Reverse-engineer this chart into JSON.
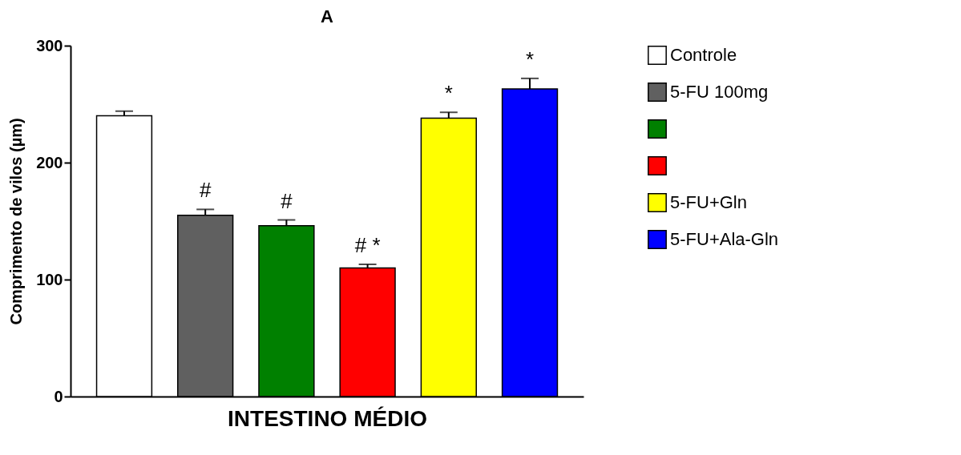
{
  "chart_data": {
    "type": "bar",
    "title": "A",
    "xlabel": "INTESTINO MÉDIO",
    "ylabel": "Comprimento de vilos (µm)",
    "categories": [
      null
    ],
    "ylim": [
      0,
      300
    ],
    "yticks": [
      0,
      100,
      200,
      300
    ],
    "grid": false,
    "legend": "right",
    "series": [
      {
        "name": "Controle",
        "color": "#ffffff",
        "values": [
          240
        ],
        "errors": [
          4
        ],
        "value_labels": [
          null
        ]
      },
      {
        "name": "5-FU 100mg",
        "color": "#606060",
        "values": [
          155
        ],
        "errors": [
          5
        ],
        "value_labels": [
          "#"
        ]
      },
      {
        "name": null,
        "color": "#008000",
        "values": [
          146
        ],
        "errors": [
          5
        ],
        "value_labels": [
          "#"
        ]
      },
      {
        "name": null,
        "color": "#ff0000",
        "values": [
          110
        ],
        "errors": [
          3
        ],
        "value_labels": [
          "#  *"
        ]
      },
      {
        "name": "5-FU+Gln",
        "color": "#ffff00",
        "values": [
          238
        ],
        "errors": [
          5
        ],
        "value_labels": [
          "*"
        ]
      },
      {
        "name": "5-FU+Ala-Gln",
        "color": "#0000ff",
        "values": [
          263
        ],
        "errors": [
          9
        ],
        "value_labels": [
          "*"
        ]
      }
    ]
  }
}
